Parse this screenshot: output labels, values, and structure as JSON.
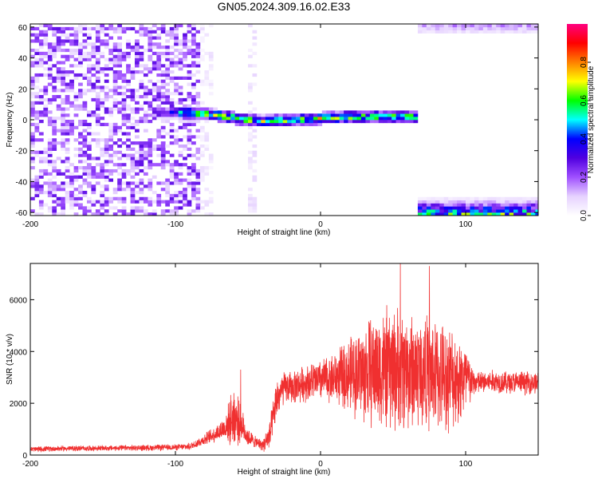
{
  "figure": {
    "title": "GN05.2024.309.16.02.E33"
  },
  "chart_data": [
    {
      "type": "heatmap",
      "title": "GN05.2024.309.16.02.E33",
      "xlabel": "Height of straight line (km)",
      "ylabel": "Frequency (Hz)",
      "xlim": [
        -200,
        150
      ],
      "ylim": [
        -62,
        62
      ],
      "xticks": [
        "-200",
        "-100",
        "0",
        "100"
      ],
      "yticks": [
        "60",
        "40",
        "20",
        "0",
        "-20",
        "-40",
        "-60"
      ],
      "colorbar": {
        "label": "Normalized spectral amplitude",
        "range": [
          0,
          1
        ],
        "ticks": [
          "0.0",
          "0.2",
          "0.4",
          "0.6",
          "0.8"
        ],
        "colors": [
          "#ffffff",
          "#e6d2ff",
          "#a050ff",
          "#5000e0",
          "#0000ff",
          "#00ffff",
          "#00ff00",
          "#ffff00",
          "#ff8000",
          "#ff0000",
          "#ff0080"
        ]
      },
      "regions": [
        {
          "feature": "broadband noise",
          "x_range": [
            -200,
            -85
          ],
          "freq_range": [
            -62,
            62
          ],
          "amplitude": 0.15
        },
        {
          "feature": "scattered noise",
          "x_range": [
            -85,
            -75
          ],
          "freq_range": [
            -62,
            62
          ],
          "amplitude": 0.05
        },
        {
          "feature": "noise column",
          "x_range": [
            -52,
            -46
          ],
          "freq_range": [
            -62,
            62
          ],
          "amplitude": 0.06
        },
        {
          "feature": "signal band",
          "x_range": [
            -118,
            66
          ],
          "freq_range": [
            -5,
            6
          ],
          "amplitude": 0.7
        },
        {
          "feature": "upper edge band",
          "x_range": [
            67,
            150
          ],
          "freq_range": [
            56,
            62
          ],
          "amplitude": 0.2
        },
        {
          "feature": "lower edge band",
          "x_range": [
            67,
            150
          ],
          "freq_range": [
            -62,
            -52
          ],
          "amplitude": 0.6
        }
      ],
      "signal_trace": {
        "x": [
          -120,
          -100,
          -80,
          -60,
          -40,
          -20,
          0,
          20,
          40,
          60,
          65
        ],
        "freq": [
          4,
          4,
          3,
          0,
          -2,
          -1,
          0,
          1,
          1,
          1,
          0
        ]
      }
    },
    {
      "type": "line",
      "xlabel": "Height of straight line (km)",
      "ylabel": "SNR (10 * v/v)",
      "xlim": [
        -200,
        150
      ],
      "ylim": [
        0,
        7400
      ],
      "xticks": [
        "-200",
        "-100",
        "0",
        "100"
      ],
      "yticks": [
        "0",
        "2000",
        "4000",
        "6000"
      ],
      "color": "#f03030",
      "series": [
        {
          "x": [
            -200,
            -180,
            -160,
            -140,
            -120,
            -100,
            -90,
            -80,
            -70,
            -65,
            -60,
            -55,
            -50,
            -45,
            -40,
            -35,
            -30,
            -25,
            -20,
            -10,
            0,
            10,
            20,
            30,
            40,
            50,
            60,
            70,
            80,
            90,
            100,
            105,
            110,
            120,
            130,
            140,
            150
          ],
          "y_mid": [
            220,
            250,
            260,
            270,
            280,
            300,
            330,
            600,
            900,
            1100,
            1500,
            1200,
            700,
            500,
            380,
            700,
            2200,
            2600,
            2600,
            2800,
            2900,
            3000,
            3100,
            3200,
            3300,
            3300,
            3300,
            3200,
            3100,
            3000,
            2900,
            2800,
            2800,
            2850,
            2800,
            2800,
            2800
          ],
          "y_spread": [
            120,
            120,
            120,
            120,
            130,
            130,
            150,
            250,
            400,
            600,
            1400,
            800,
            400,
            250,
            250,
            700,
            900,
            700,
            700,
            800,
            900,
            1100,
            1600,
            2200,
            2600,
            2700,
            2600,
            2500,
            2400,
            2200,
            1800,
            600,
            500,
            500,
            500,
            500,
            500
          ]
        }
      ],
      "peaks": [
        {
          "x": -55,
          "y": 3300
        },
        {
          "x": 55,
          "y": 7400
        },
        {
          "x": 75,
          "y": 7300
        }
      ]
    }
  ]
}
